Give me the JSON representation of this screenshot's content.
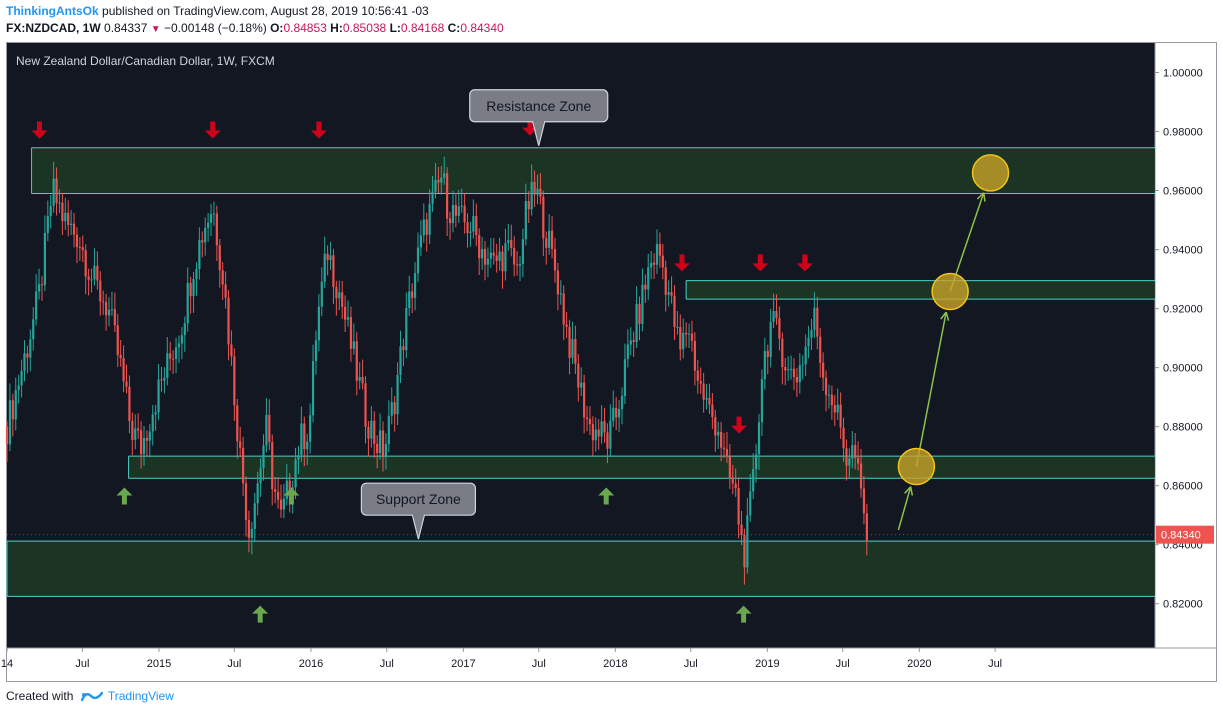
{
  "header": {
    "author": "ThinkingAntsOk",
    "published": "published on TradingView.com, August 28, 2019 10:56:41 -03",
    "symbol": "FX:NZDCAD, 1W",
    "last": "0.84337",
    "change": "−0.00148 (−0.18%)",
    "o_label": "O:",
    "o_value": "0.84853",
    "h_label": "H:",
    "h_value": "0.85038",
    "l_label": "L:",
    "l_value": "0.84168",
    "c_label": "C:",
    "c_value": "0.84340"
  },
  "footer": {
    "created_with": "Created with",
    "brand": "TradingView"
  },
  "colors": {
    "background": "#131722",
    "bull": "#26a69a",
    "bear": "#ef5350",
    "zone_fill": "#1f3a25",
    "zone_line": "#4dd0c8",
    "red_arrow": "#d0021b",
    "green_arrow": "#6aa84f",
    "circle": "#c9a227",
    "projection": "#8bc34a",
    "price_tag": "#ef5350"
  },
  "chart_data": {
    "type": "candlestick",
    "title": "New Zealand Dollar/Canadian Dollar, 1W, FXCM",
    "ylim": [
      0.805,
      1.01
    ],
    "y_ticks": [
      "1.00000",
      "0.98000",
      "0.96000",
      "0.94000",
      "0.92000",
      "0.90000",
      "0.88000",
      "0.86000",
      "0.84000",
      "0.82000"
    ],
    "x_range": [
      "2014-01-01",
      "2021-07-20"
    ],
    "x_ticks": [
      {
        "date": "2014-01-01",
        "label": "14"
      },
      {
        "date": "2014-07-01",
        "label": "Jul"
      },
      {
        "date": "2015-01-01",
        "label": "2015"
      },
      {
        "date": "2015-07-01",
        "label": "Jul"
      },
      {
        "date": "2016-01-01",
        "label": "2016"
      },
      {
        "date": "2016-07-01",
        "label": "Jul"
      },
      {
        "date": "2017-01-01",
        "label": "2017"
      },
      {
        "date": "2017-07-01",
        "label": "Jul"
      },
      {
        "date": "2018-01-01",
        "label": "2018"
      },
      {
        "date": "2018-07-01",
        "label": "Jul"
      },
      {
        "date": "2019-01-01",
        "label": "2019"
      },
      {
        "date": "2019-07-01",
        "label": "Jul"
      },
      {
        "date": "2020-01-01",
        "label": "2020"
      },
      {
        "date": "2020-07-01",
        "label": "Jul"
      }
    ],
    "price_keypoints": [
      [
        "2014-01-01",
        0.88
      ],
      [
        "2014-02-15",
        0.905
      ],
      [
        "2014-03-20",
        0.925
      ],
      [
        "2014-04-20",
        0.96
      ],
      [
        "2014-05-25",
        0.948
      ],
      [
        "2014-06-20",
        0.945
      ],
      [
        "2014-07-25",
        0.93
      ],
      [
        "2014-09-01",
        0.92
      ],
      [
        "2014-10-01",
        0.9
      ],
      [
        "2014-10-25",
        0.88
      ],
      [
        "2014-11-20",
        0.873
      ],
      [
        "2014-12-20",
        0.888
      ],
      [
        "2015-01-20",
        0.9
      ],
      [
        "2015-02-25",
        0.915
      ],
      [
        "2015-03-25",
        0.935
      ],
      [
        "2015-04-20",
        0.948
      ],
      [
        "2015-05-10",
        0.955
      ],
      [
        "2015-06-05",
        0.93
      ],
      [
        "2015-06-25",
        0.9
      ],
      [
        "2015-07-15",
        0.87
      ],
      [
        "2015-08-05",
        0.845
      ],
      [
        "2015-08-25",
        0.86
      ],
      [
        "2015-09-15",
        0.88
      ],
      [
        "2015-10-01",
        0.862
      ],
      [
        "2015-10-20",
        0.848
      ],
      [
        "2015-11-10",
        0.86
      ],
      [
        "2015-12-05",
        0.875
      ],
      [
        "2015-12-28",
        0.88
      ],
      [
        "2016-01-15",
        0.915
      ],
      [
        "2016-02-10",
        0.94
      ],
      [
        "2016-03-10",
        0.925
      ],
      [
        "2016-04-10",
        0.905
      ],
      [
        "2016-05-10",
        0.885
      ],
      [
        "2016-06-05",
        0.875
      ],
      [
        "2016-06-25",
        0.872
      ],
      [
        "2016-07-20",
        0.89
      ],
      [
        "2016-08-15",
        0.915
      ],
      [
        "2016-09-10",
        0.935
      ],
      [
        "2016-10-05",
        0.95
      ],
      [
        "2016-10-25",
        0.958
      ],
      [
        "2016-11-10",
        0.965
      ],
      [
        "2016-11-25",
        0.955
      ],
      [
        "2016-12-20",
        0.95
      ],
      [
        "2017-01-20",
        0.948
      ],
      [
        "2017-02-15",
        0.94
      ],
      [
        "2017-03-15",
        0.935
      ],
      [
        "2017-04-15",
        0.94
      ],
      [
        "2017-05-10",
        0.933
      ],
      [
        "2017-06-05",
        0.955
      ],
      [
        "2017-06-25",
        0.96
      ],
      [
        "2017-07-20",
        0.945
      ],
      [
        "2017-08-15",
        0.93
      ],
      [
        "2017-09-10",
        0.91
      ],
      [
        "2017-10-10",
        0.892
      ],
      [
        "2017-10-30",
        0.88
      ],
      [
        "2017-11-25",
        0.878
      ],
      [
        "2017-12-15",
        0.875
      ],
      [
        "2018-01-05",
        0.885
      ],
      [
        "2018-02-01",
        0.905
      ],
      [
        "2018-03-01",
        0.92
      ],
      [
        "2018-03-25",
        0.935
      ],
      [
        "2018-04-15",
        0.94
      ],
      [
        "2018-05-10",
        0.925
      ],
      [
        "2018-06-05",
        0.905
      ],
      [
        "2018-06-25",
        0.915
      ],
      [
        "2018-07-20",
        0.895
      ],
      [
        "2018-08-15",
        0.885
      ],
      [
        "2018-09-05",
        0.88
      ],
      [
        "2018-09-25",
        0.865
      ],
      [
        "2018-10-15",
        0.858
      ],
      [
        "2018-10-25",
        0.848
      ],
      [
        "2018-11-05",
        0.836
      ],
      [
        "2018-11-15",
        0.845
      ],
      [
        "2018-12-01",
        0.865
      ],
      [
        "2018-12-20",
        0.9
      ],
      [
        "2019-01-10",
        0.915
      ],
      [
        "2019-01-30",
        0.91
      ],
      [
        "2019-02-20",
        0.898
      ],
      [
        "2019-03-15",
        0.898
      ],
      [
        "2019-04-05",
        0.908
      ],
      [
        "2019-04-25",
        0.917
      ],
      [
        "2019-05-15",
        0.898
      ],
      [
        "2019-06-05",
        0.89
      ],
      [
        "2019-06-25",
        0.88
      ],
      [
        "2019-07-10",
        0.87
      ],
      [
        "2019-07-28",
        0.872
      ],
      [
        "2019-08-10",
        0.86
      ],
      [
        "2019-08-28",
        0.8434
      ]
    ],
    "zones": [
      {
        "name": "Resistance Zone",
        "from": "2014-03-01",
        "top": 0.9745,
        "bottom": 0.959
      },
      {
        "name": "",
        "from": "2018-06-20",
        "top": 0.9295,
        "bottom": 0.9232
      },
      {
        "name": "",
        "from": "2014-10-20",
        "top": 0.87,
        "bottom": 0.8625
      },
      {
        "name": "Support Zone",
        "from": "2014-01-01",
        "top": 0.8412,
        "bottom": 0.8225
      }
    ],
    "callouts": [
      {
        "text": "Resistance Zone",
        "date": "2017-07-01",
        "price": 0.9745
      },
      {
        "text": "Support Zone",
        "date": "2016-09-15",
        "price": 0.8412
      }
    ],
    "down_arrows": [
      {
        "date": "2014-03-20",
        "price": 0.98
      },
      {
        "date": "2015-05-10",
        "price": 0.98
      },
      {
        "date": "2016-01-20",
        "price": 0.98
      },
      {
        "date": "2017-06-10",
        "price": 0.981
      },
      {
        "date": "2018-06-10",
        "price": 0.935
      },
      {
        "date": "2018-12-15",
        "price": 0.935
      },
      {
        "date": "2019-04-01",
        "price": 0.935
      },
      {
        "date": "2018-10-25",
        "price": 0.88
      }
    ],
    "up_arrows": [
      {
        "date": "2014-10-10",
        "price": 0.857
      },
      {
        "date": "2015-09-01",
        "price": 0.817
      },
      {
        "date": "2015-11-15",
        "price": 0.857
      },
      {
        "date": "2016-06-25",
        "price": 0.857
      },
      {
        "date": "2017-12-10",
        "price": 0.857
      },
      {
        "date": "2018-11-05",
        "price": 0.817
      }
    ],
    "projection_circles": [
      {
        "date": "2019-12-25",
        "price": 0.8665
      },
      {
        "date": "2020-03-15",
        "price": 0.9258
      },
      {
        "date": "2020-06-20",
        "price": 0.966
      }
    ],
    "last_price": 0.8434,
    "last_price_label": "0.84340"
  }
}
